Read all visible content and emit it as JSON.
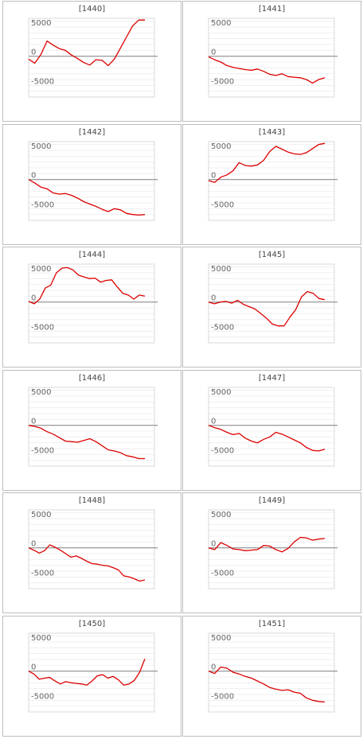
{
  "chart_data": [
    {
      "type": "line",
      "title": "[1440]",
      "y_ticks": [
        5000,
        0,
        -5000
      ],
      "ylim": [
        -7000,
        6500
      ],
      "series_color": "#dd0000",
      "values": [
        -500,
        -1200,
        300,
        2600,
        1900,
        1300,
        1000,
        200,
        -400,
        -1100,
        -1500,
        -600,
        -700,
        -1600,
        -500,
        1400,
        3300,
        5200,
        6200,
        6200
      ]
    },
    {
      "type": "line",
      "title": "[1441]",
      "y_ticks": [
        5000,
        0,
        -5000
      ],
      "ylim": [
        -7000,
        6500
      ],
      "series_color": "#dd0000",
      "values": [
        -100,
        -600,
        -1000,
        -1600,
        -1900,
        -2100,
        -2300,
        -2400,
        -2200,
        -2600,
        -3100,
        -3300,
        -3000,
        -3500,
        -3600,
        -3700,
        -4000,
        -4600,
        -4000,
        -3700
      ]
    },
    {
      "type": "line",
      "title": "[1442]",
      "y_ticks": [
        5000,
        0,
        -5000
      ],
      "ylim": [
        -7000,
        6500
      ],
      "series_color": "#dd0000",
      "values": [
        0,
        -600,
        -1300,
        -1600,
        -2300,
        -2500,
        -2400,
        -2700,
        -3200,
        -3800,
        -4200,
        -4600,
        -5100,
        -5500,
        -5000,
        -5200,
        -5800,
        -6000,
        -6100,
        -6000
      ]
    },
    {
      "type": "line",
      "title": "[1443]",
      "y_ticks": [
        5000,
        0,
        -5000
      ],
      "ylim": [
        -7000,
        6500
      ],
      "series_color": "#dd0000",
      "values": [
        -200,
        -500,
        400,
        800,
        1500,
        2900,
        2400,
        2300,
        2500,
        3300,
        4800,
        5700,
        5200,
        4700,
        4400,
        4300,
        4600,
        5300,
        6000,
        6200
      ]
    },
    {
      "type": "line",
      "title": "[1444]",
      "y_ticks": [
        5000,
        0,
        -5000
      ],
      "ylim": [
        -7000,
        6500
      ],
      "series_color": "#dd0000",
      "values": [
        100,
        -300,
        500,
        2400,
        2900,
        5000,
        5800,
        5900,
        5500,
        4600,
        4300,
        4000,
        4100,
        3400,
        3700,
        3800,
        2600,
        1500,
        1200,
        500,
        1200,
        1000
      ]
    },
    {
      "type": "line",
      "title": "[1445]",
      "y_ticks": [
        5000,
        0,
        -5000
      ],
      "ylim": [
        -7000,
        6500
      ],
      "series_color": "#dd0000",
      "values": [
        0,
        -300,
        0,
        100,
        -200,
        300,
        -400,
        -800,
        -1200,
        -2000,
        -2800,
        -3800,
        -4100,
        -4100,
        -2600,
        -1300,
        900,
        1800,
        1500,
        600,
        400
      ]
    },
    {
      "type": "line",
      "title": "[1446]",
      "y_ticks": [
        5000,
        0,
        -5000
      ],
      "ylim": [
        -7000,
        6500
      ],
      "series_color": "#dd0000",
      "values": [
        0,
        -200,
        -500,
        -1100,
        -1500,
        -2100,
        -2700,
        -2800,
        -2900,
        -2600,
        -2300,
        -2800,
        -3500,
        -4200,
        -4400,
        -4700,
        -5200,
        -5400,
        -5700,
        -5700
      ]
    },
    {
      "type": "line",
      "title": "[1447]",
      "y_ticks": [
        5000,
        0,
        -5000
      ],
      "ylim": [
        -7000,
        6500
      ],
      "series_color": "#dd0000",
      "values": [
        0,
        -400,
        -700,
        -1200,
        -1600,
        -1400,
        -2200,
        -2700,
        -3000,
        -2400,
        -2000,
        -1200,
        -1500,
        -2000,
        -2500,
        -3000,
        -3800,
        -4300,
        -4400,
        -4100
      ]
    },
    {
      "type": "line",
      "title": "[1448]",
      "y_ticks": [
        5000,
        0,
        -5000
      ],
      "ylim": [
        -7000,
        6500
      ],
      "series_color": "#dd0000",
      "values": [
        0,
        -400,
        -900,
        -500,
        500,
        100,
        -400,
        -1000,
        -1600,
        -1400,
        -1800,
        -2300,
        -2700,
        -2800,
        -3000,
        -3100,
        -3400,
        -3800,
        -4800,
        -5000,
        -5300,
        -5700,
        -5500
      ]
    },
    {
      "type": "line",
      "title": "[1449]",
      "y_ticks": [
        5000,
        0,
        -5000
      ],
      "ylim": [
        -7000,
        6500
      ],
      "series_color": "#dd0000",
      "values": [
        0,
        -300,
        900,
        400,
        -200,
        -300,
        -500,
        -400,
        -300,
        400,
        300,
        -300,
        -700,
        -100,
        1000,
        1800,
        1700,
        1300,
        1500,
        1600
      ]
    },
    {
      "type": "line",
      "title": "[1450]",
      "y_ticks": [
        5000,
        0,
        -5000
      ],
      "ylim": [
        -7000,
        6500
      ],
      "series_color": "#dd0000",
      "values": [
        0,
        -500,
        -1400,
        -1200,
        -1100,
        -1700,
        -2200,
        -1800,
        -2000,
        -2100,
        -2200,
        -2400,
        -1700,
        -800,
        -600,
        -1200,
        -900,
        -1500,
        -2400,
        -2200,
        -1600,
        -200,
        2100
      ]
    },
    {
      "type": "line",
      "title": "[1451]",
      "y_ticks": [
        5000,
        0,
        -5000
      ],
      "ylim": [
        -7000,
        6500
      ],
      "series_color": "#dd0000",
      "values": [
        0,
        -400,
        700,
        500,
        -200,
        -500,
        -900,
        -1200,
        -1700,
        -2200,
        -2800,
        -3100,
        -3300,
        -3200,
        -3600,
        -3800,
        -4600,
        -5000,
        -5200,
        -5300
      ]
    }
  ]
}
